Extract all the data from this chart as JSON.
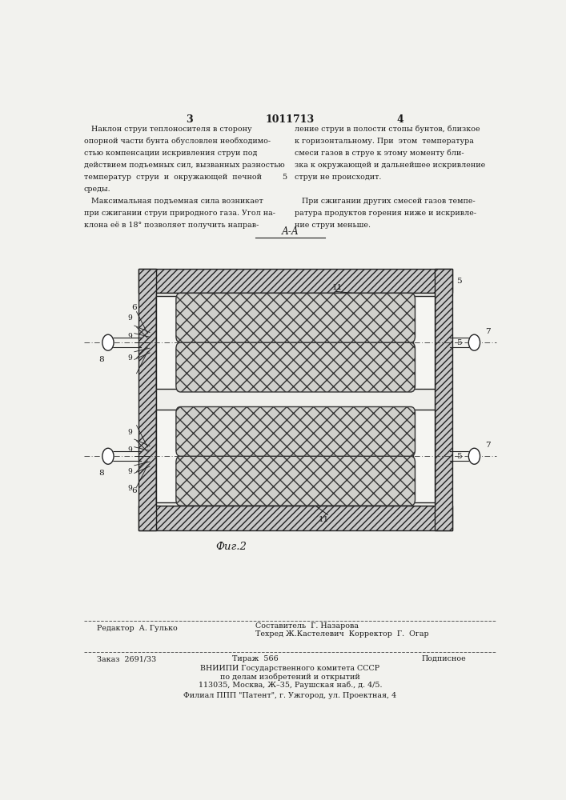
{
  "page_width": 7.07,
  "page_height": 10.0,
  "bg_color": "#f2f2ee",
  "text_color": "#1a1a1a",
  "header_left_col1_lines": [
    "   Наклон струи теплоносителя в сторону",
    "опорной части бунта обусловлен необходимо-",
    "стью компенсации искривления струи под",
    "действием подъемных сил, вызванных разностью",
    "температур  струи  и  окружающей  печной",
    "среды.",
    "   Максимальная подъемная сила возникает",
    "при сжигании струи природного газа. Угол на-",
    "клона её в 18° позволяет получить направ-"
  ],
  "header_right_col2_lines": [
    "ление струи в полости стопы бунтов, близкое",
    "к горизонтальному. При  этом  температура",
    "смеси газов в струе к этому моменту бли-",
    "зка к окружающей и дальнейшее искривление",
    "струи не происходит.",
    "",
    "   При сжигании других смесей газов темпе-",
    "ратура продуктов горения ниже и искривле-",
    "ние струи меньше."
  ],
  "page_num_left": "3",
  "page_num_center": "1011713",
  "page_num_right": "4",
  "fig_label": "Фиг.2",
  "section_label": "А-А",
  "footer_editor": "Редактор  А. Гулько",
  "footer_composer": "Составитель  Г. Назарова",
  "footer_techred": "Техред Ж.Кастелевич  Корректор  Г.  Огар",
  "footer_order": "Заказ  2691/33",
  "footer_print": "Тираж  566",
  "footer_signed": "Подписное",
  "footer_vniipи": "ВНИИПИ Государственного комитета СССР",
  "footer_affairs": "по делам изобретений и открытий",
  "footer_address": "113035, Москва, Ж–35, Раушская наб., д. 4/5.",
  "footer_filial": "Филиал ППП \"Патент\", г. Ужгород, ул. Проектная, 4"
}
